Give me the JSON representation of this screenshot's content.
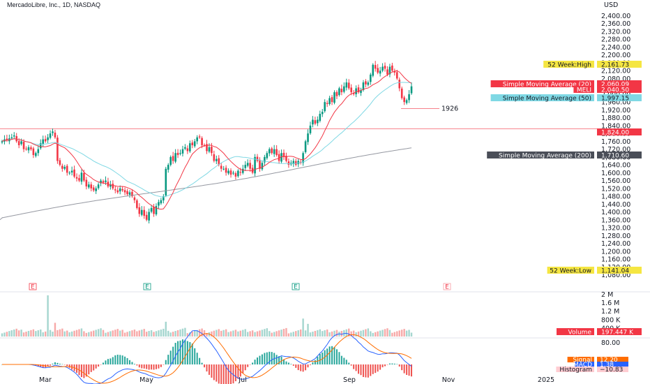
{
  "header": {
    "title": "MercadoLibre, Inc., 1D, NASDAQ",
    "currency": "USD"
  },
  "chart_data": {
    "type": "candlestick",
    "price_axis": {
      "ticks": [
        "2,400.00",
        "2,360.00",
        "2,320.00",
        "2,280.00",
        "2,240.00",
        "2,200.00",
        "2,160.00",
        "2,120.00",
        "2,080.00",
        "2,040.00",
        "2,000.00",
        "1,960.00",
        "1,920.00",
        "1,880.00",
        "1,840.00",
        "1,800.00",
        "1,760.00",
        "1,720.00",
        "1,680.00",
        "1,640.00",
        "1,600.00",
        "1,560.00",
        "1,520.00",
        "1,480.00",
        "1,440.00",
        "1,400.00",
        "1,360.00",
        "1,320.00",
        "1,280.00",
        "1,240.00",
        "1,200.00",
        "1,160.00",
        "1,120.00",
        "1,080.00"
      ],
      "ylim": [
        1080,
        2400
      ]
    },
    "time_axis": {
      "labels": [
        "Mar",
        "May",
        "Jul",
        "Sep",
        "Nov",
        "2025"
      ]
    },
    "price_tags": [
      {
        "label": "52 Week:High",
        "value": "2,161.73",
        "color": "#f5e642"
      },
      {
        "label": "Simple Moving Average (20)",
        "value": "2,060.09",
        "color": "#f23645"
      },
      {
        "label": "MELI",
        "value": "2,040.50",
        "color": "#f23645"
      },
      {
        "label": "Simple Moving Average (50)",
        "value": "1,997.15",
        "color": "#7fd8e4"
      },
      {
        "label": "",
        "value": "1,824.00",
        "color": "#f23645"
      },
      {
        "label": "Simple Moving Average (200)",
        "value": "1,710.60",
        "color": "#4a4e58"
      },
      {
        "label": "52 Week:Low",
        "value": "1,141.04",
        "color": "#f5e642"
      }
    ],
    "annotations": [
      {
        "text": "1926",
        "value": 1926
      }
    ],
    "horizontal_line": 1824,
    "earnings_markers": [
      "E",
      "E",
      "E",
      "E"
    ],
    "volume_panel": {
      "axis_ticks": [
        "2 M",
        "1.6 M",
        "1.2 M",
        "800 K",
        "400 K"
      ],
      "tag": {
        "label": "Volume",
        "value": "197.447 K"
      }
    },
    "macd_panel": {
      "axis_ticks": [
        "80.00"
      ],
      "tags": [
        {
          "label": "Signal",
          "value": "12.20",
          "color": "#ff6d00"
        },
        {
          "label": "MACD",
          "value": "1.38",
          "color": "#2962ff"
        },
        {
          "label": "Histogram",
          "value": "−10.83",
          "color": "#ffcdd2"
        }
      ]
    },
    "series": [
      {
        "name": "MELI",
        "kind": "close",
        "values": [
          1760,
          1770,
          1765,
          1775,
          1780,
          1790,
          1760,
          1740,
          1760,
          1720,
          1720,
          1730,
          1720,
          1690,
          1700,
          1720,
          1750,
          1770,
          1760,
          1780,
          1800,
          1810,
          1780,
          1660,
          1640,
          1620,
          1630,
          1600,
          1600,
          1610,
          1580,
          1570,
          1560,
          1600,
          1560,
          1530,
          1540,
          1520,
          1510,
          1520,
          1540,
          1560,
          1550,
          1560,
          1530,
          1540,
          1520,
          1510,
          1500,
          1520,
          1510,
          1500,
          1490,
          1500,
          1480,
          1460,
          1420,
          1390,
          1410,
          1380,
          1360,
          1400,
          1420,
          1390,
          1430,
          1450,
          1460,
          1480,
          1620,
          1640,
          1680,
          1660,
          1700,
          1690,
          1700,
          1720,
          1730,
          1710,
          1750,
          1740,
          1760,
          1780,
          1780,
          1740,
          1740,
          1710,
          1730,
          1700,
          1660,
          1670,
          1640,
          1620,
          1620,
          1600,
          1610,
          1590,
          1600,
          1580,
          1610,
          1600,
          1620,
          1640,
          1650,
          1620,
          1600,
          1680,
          1660,
          1620,
          1650,
          1680,
          1700,
          1720,
          1700,
          1720,
          1690,
          1660,
          1700,
          1680,
          1660,
          1640,
          1650,
          1660,
          1640,
          1660,
          1650,
          1700,
          1760,
          1800,
          1840,
          1870,
          1850,
          1870,
          1900,
          1910,
          1960,
          1950,
          1980,
          1960,
          2010,
          1990,
          2030,
          2010,
          2040,
          2060,
          2030,
          2010,
          2000,
          2030,
          2010,
          2020,
          2060,
          2050,
          2060,
          2100,
          2150,
          2130,
          2110,
          2120,
          2140,
          2130,
          2100,
          2140,
          2120,
          2110,
          2080,
          2030,
          1980,
          1960,
          1970,
          2000,
          2040
        ]
      },
      {
        "name": "Simple Moving Average (20)",
        "values": []
      },
      {
        "name": "Simple Moving Average (50)",
        "values": []
      },
      {
        "name": "Simple Moving Average (200)",
        "values": []
      }
    ]
  }
}
